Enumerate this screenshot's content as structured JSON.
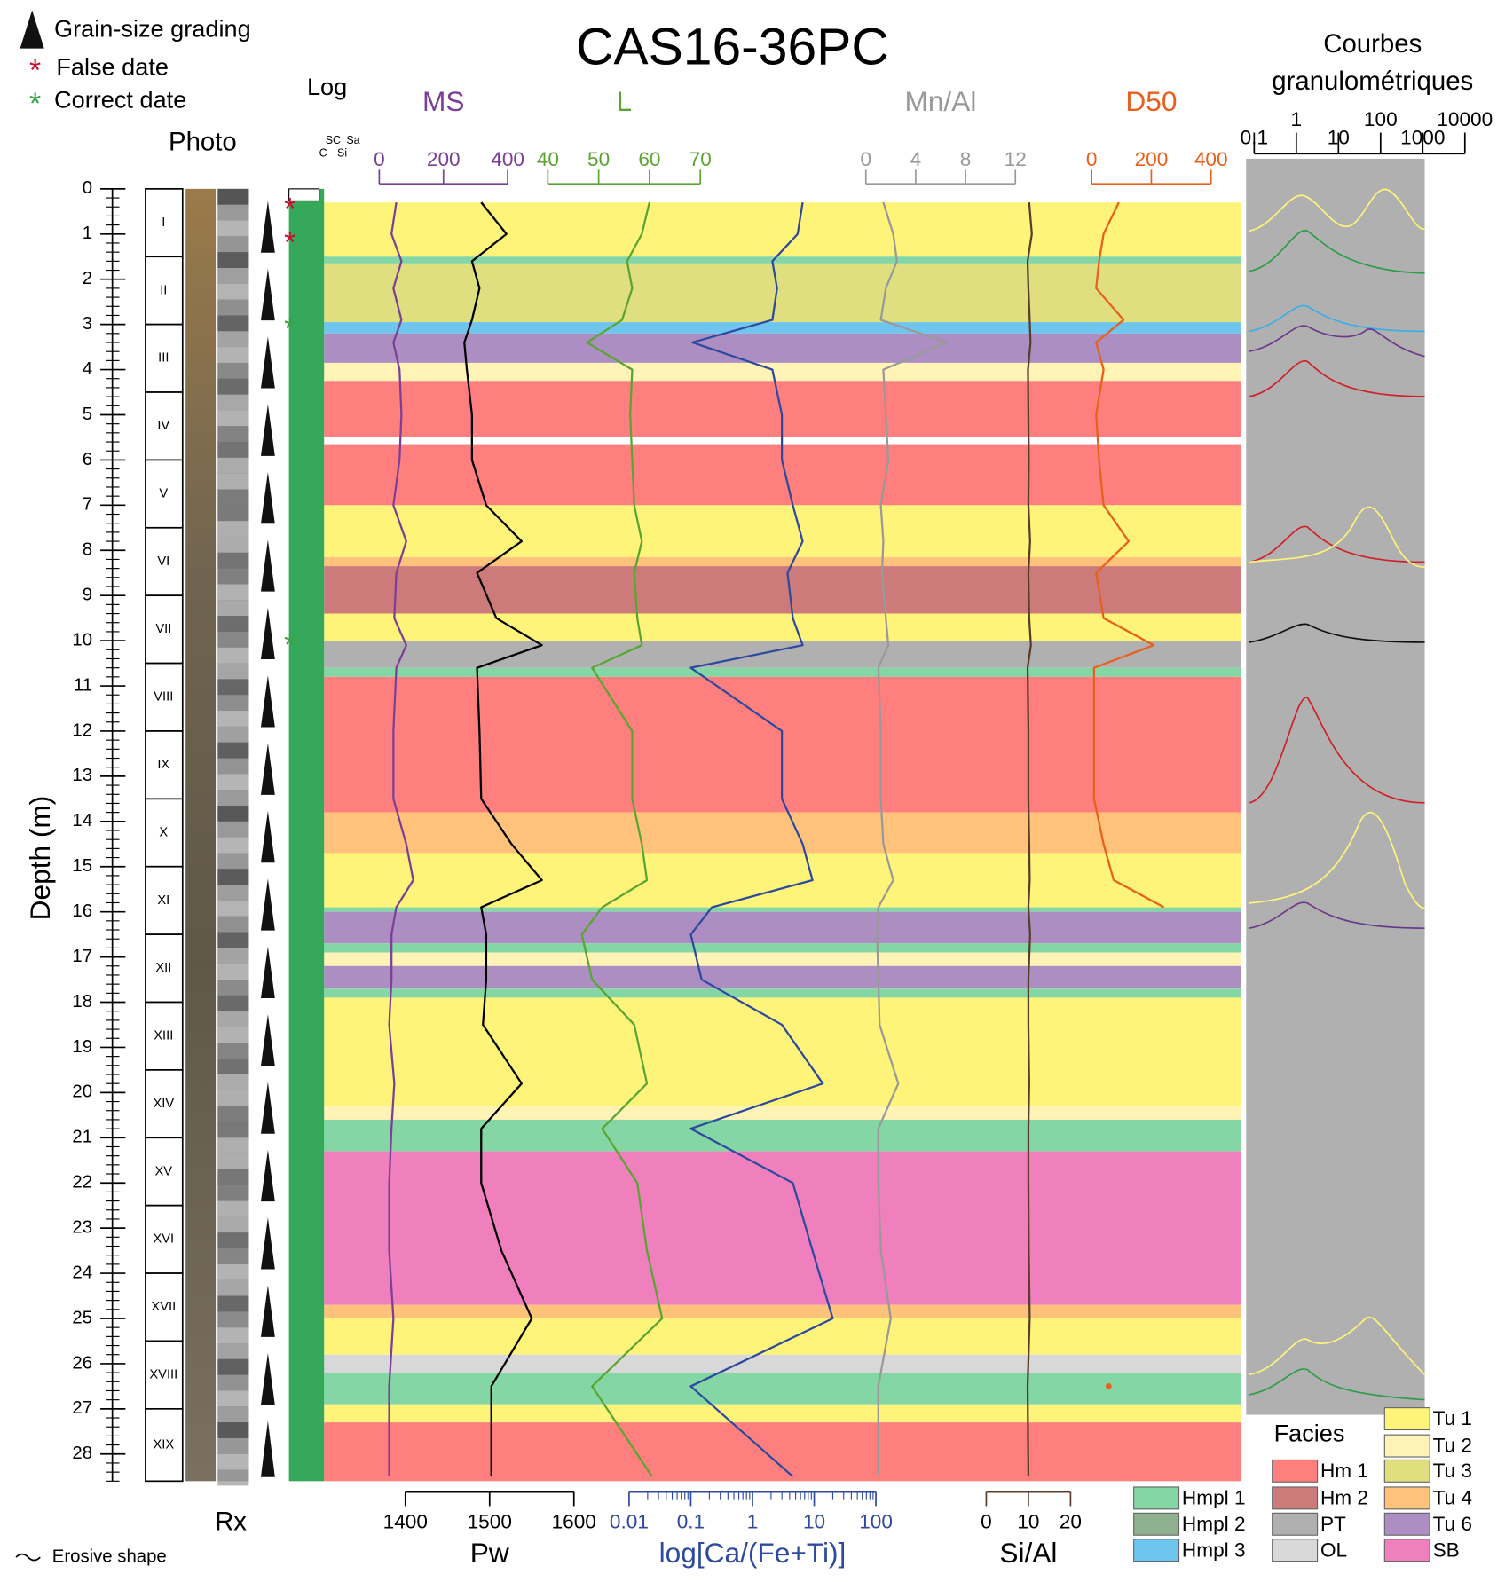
{
  "title": "CAS16-36PC",
  "legend": {
    "grading": "Grain-size grading",
    "false_date": "False date",
    "correct_date": "Correct date",
    "erosive": "Erosive shape"
  },
  "column_labels": {
    "photo": "Photo",
    "rx": "Rx",
    "log": "Log",
    "grain_classes": [
      "C",
      "Si",
      "SC",
      "Sa"
    ]
  },
  "depth_axis": {
    "label": "Depth (m)",
    "lim": [
      0,
      28.6
    ],
    "ticks": [
      0,
      1,
      2,
      3,
      4,
      5,
      6,
      7,
      8,
      9,
      10,
      11,
      12,
      13,
      14,
      15,
      16,
      17,
      18,
      19,
      20,
      21,
      22,
      23,
      24,
      25,
      26,
      27,
      28
    ]
  },
  "units": [
    {
      "name": "I",
      "top": 0,
      "base": 1.5
    },
    {
      "name": "II",
      "top": 1.5,
      "base": 3.0
    },
    {
      "name": "III",
      "top": 3.0,
      "base": 4.5
    },
    {
      "name": "IV",
      "top": 4.5,
      "base": 6.0
    },
    {
      "name": "V",
      "top": 6.0,
      "base": 7.5
    },
    {
      "name": "VI",
      "top": 7.5,
      "base": 9.0
    },
    {
      "name": "VII",
      "top": 9.0,
      "base": 10.5
    },
    {
      "name": "VIII",
      "top": 10.5,
      "base": 12.0
    },
    {
      "name": "IX",
      "top": 12.0,
      "base": 13.5
    },
    {
      "name": "X",
      "top": 13.5,
      "base": 15.0
    },
    {
      "name": "XI",
      "top": 15.0,
      "base": 16.5
    },
    {
      "name": "XII",
      "top": 16.5,
      "base": 18.0
    },
    {
      "name": "XIII",
      "top": 18.0,
      "base": 19.5
    },
    {
      "name": "XIV",
      "top": 19.5,
      "base": 21.0
    },
    {
      "name": "XV",
      "top": 21.0,
      "base": 22.5
    },
    {
      "name": "XVI",
      "top": 22.5,
      "base": 24.0
    },
    {
      "name": "XVII",
      "top": 24.0,
      "base": 25.5
    },
    {
      "name": "XVIII",
      "top": 25.5,
      "base": 27.0
    },
    {
      "name": "XIX",
      "top": 27.0,
      "base": 28.6
    }
  ],
  "false_dates": [
    0.35,
    1.1
  ],
  "correct_dates": [
    3.0,
    10.0
  ],
  "depths": [
    0.3,
    1.0,
    1.6,
    2.2,
    2.9,
    3.4,
    4.0,
    5.0,
    6.0,
    7.0,
    7.8,
    8.5,
    9.5,
    10.1,
    10.6,
    12,
    13.5,
    14.5,
    15.3,
    15.9,
    16.5,
    17.5,
    18.5,
    19.8,
    20.8,
    22,
    23.5,
    25,
    26.5,
    28.5
  ],
  "tracks": [
    {
      "name": "MS",
      "color": "#7b3f98",
      "axis_position": "top",
      "lim": [
        0,
        400
      ],
      "ticks": [
        0,
        200,
        400
      ],
      "values": [
        53,
        38,
        69,
        44,
        69,
        44,
        63,
        69,
        63,
        44,
        84,
        53,
        47,
        84,
        53,
        44,
        44,
        84,
        106,
        53,
        38,
        38,
        31,
        47,
        38,
        31,
        31,
        44,
        31,
        31
      ]
    },
    {
      "name": "L",
      "color": "#5aa532",
      "axis_position": "top",
      "lim": [
        40,
        70
      ],
      "ticks": [
        40,
        50,
        60,
        70
      ],
      "values": [
        60,
        58.5,
        55.6,
        56.6,
        54.6,
        47.7,
        56.6,
        56.2,
        56.6,
        57,
        58.5,
        57,
        57.6,
        58.5,
        48.7,
        56.6,
        56.6,
        58.5,
        59.5,
        50.7,
        46.7,
        48.7,
        57,
        59.5,
        50.7,
        57.6,
        59.5,
        62.5,
        48.7,
        60.5
      ]
    },
    {
      "name": "Mn/Al",
      "color": "#999999",
      "axis_position": "top",
      "lim": [
        0,
        12
      ],
      "ticks": [
        0,
        4,
        8,
        12
      ],
      "values": [
        1.4,
        2.2,
        2.5,
        1.6,
        1.2,
        6.5,
        1.4,
        1.6,
        1.8,
        1.2,
        1.4,
        1.3,
        1.6,
        1.8,
        1.0,
        1.2,
        1.2,
        1.4,
        2.2,
        1.0,
        0.9,
        1.0,
        1.1,
        2.6,
        1.0,
        1.0,
        1.2,
        2.0,
        1.0,
        1.0
      ]
    },
    {
      "name": "D50",
      "color": "#e8601c",
      "axis_position": "top",
      "lim": [
        0,
        400
      ],
      "ticks": [
        0,
        200,
        400
      ],
      "values": [
        91,
        40,
        25,
        15,
        107,
        15,
        40,
        15,
        25,
        40,
        124,
        15,
        40,
        208,
        8,
        8,
        8,
        40,
        74,
        242,
        null,
        null,
        null,
        null,
        null,
        null,
        null,
        null,
        57,
        null
      ]
    },
    {
      "name": "Pw",
      "color": "#000000",
      "axis_position": "bottom",
      "lim": [
        1400,
        1600
      ],
      "ticks": [
        1400,
        1500,
        1600
      ],
      "values": [
        1490,
        1520,
        1479,
        1488,
        1479,
        1470,
        1473,
        1479,
        1479,
        1496,
        1538,
        1485,
        1508,
        1562,
        1485,
        1488,
        1490,
        1526,
        1562,
        1490,
        1496,
        1496,
        1492,
        1538,
        1490,
        1490,
        1514,
        1550,
        1502,
        1502
      ]
    },
    {
      "name": "log[Ca/(Fe+Ti)]",
      "color": "#2e4a9e",
      "axis_position": "bottom",
      "log": true,
      "lim": [
        0.01,
        100
      ],
      "ticks": [
        0.01,
        0.1,
        1,
        10,
        100
      ],
      "values": [
        6.5,
        5.4,
        2.1,
        2.5,
        2.1,
        0.106,
        2.1,
        3.0,
        3.0,
        4.5,
        6.5,
        3.7,
        4.5,
        6.5,
        0.1,
        3.0,
        3.0,
        6.5,
        9.4,
        0.22,
        0.1,
        0.15,
        3.0,
        13.8,
        0.1,
        4.5,
        9.4,
        20,
        0.1,
        4.5
      ]
    },
    {
      "name": "Si/Al",
      "color": "#5a3e2b",
      "axis_position": "bottom",
      "lim": [
        0,
        20
      ],
      "ticks": [
        0,
        10,
        20
      ],
      "values": [
        10.2,
        10.8,
        9.8,
        10,
        10.3,
        10.5,
        9.9,
        10,
        10.1,
        10,
        10.4,
        10,
        10.2,
        10.6,
        9.8,
        10,
        10,
        10.2,
        10.3,
        10,
        10.4,
        10,
        10,
        10.2,
        10,
        10,
        10.1,
        10.3,
        9.8,
        10
      ]
    }
  ],
  "facies_legend": {
    "title": "Facies",
    "items": [
      {
        "name": "Hmpl 1",
        "color": "#84d7a5"
      },
      {
        "name": "Hmpl 2",
        "color": "#8fb08f"
      },
      {
        "name": "Hmpl 3",
        "color": "#6ec6ef"
      },
      {
        "name": "Hm 1",
        "color": "#ff7f7f"
      },
      {
        "name": "Hm 2",
        "color": "#cd7a7a"
      },
      {
        "name": "PT",
        "color": "#b0b0b0"
      },
      {
        "name": "OL",
        "color": "#d8d8d8"
      },
      {
        "name": "Tu 1",
        "color": "#fff47a"
      },
      {
        "name": "Tu 2",
        "color": "#fff3b5"
      },
      {
        "name": "Tu 3",
        "color": "#e0df80"
      },
      {
        "name": "Tu 4",
        "color": "#ffc27a"
      },
      {
        "name": "Tu 6",
        "color": "#ac8ec3"
      },
      {
        "name": "SB",
        "color": "#f07fbd"
      }
    ]
  },
  "facies_intervals": [
    {
      "facies": "Tu 1",
      "top": 0.3,
      "base": 1.5
    },
    {
      "facies": "Hmpl 1",
      "top": 1.5,
      "base": 1.65
    },
    {
      "facies": "Tu 3",
      "top": 1.65,
      "base": 2.95
    },
    {
      "facies": "Hmpl 3",
      "top": 2.95,
      "base": 3.2
    },
    {
      "facies": "Tu 6",
      "top": 3.2,
      "base": 3.85
    },
    {
      "facies": "Tu 2",
      "top": 3.85,
      "base": 4.25
    },
    {
      "facies": "Hm 1",
      "top": 4.25,
      "base": 5.5
    },
    {
      "facies": "Hm 1",
      "top": 5.65,
      "base": 7.0
    },
    {
      "facies": "Tu 1",
      "top": 7.0,
      "base": 8.15
    },
    {
      "facies": "Tu 4",
      "top": 8.15,
      "base": 8.35
    },
    {
      "facies": "Hm 2",
      "top": 8.35,
      "base": 9.4
    },
    {
      "facies": "Tu 1",
      "top": 9.4,
      "base": 10.0
    },
    {
      "facies": "PT",
      "top": 10.0,
      "base": 10.6
    },
    {
      "facies": "Hmpl 1",
      "top": 10.6,
      "base": 10.8
    },
    {
      "facies": "Hm 1",
      "top": 10.8,
      "base": 13.8
    },
    {
      "facies": "Tu 4",
      "top": 13.8,
      "base": 14.7
    },
    {
      "facies": "Tu 1",
      "top": 14.7,
      "base": 15.9
    },
    {
      "facies": "Hmpl 1",
      "top": 15.9,
      "base": 16.0
    },
    {
      "facies": "Tu 6",
      "top": 16.0,
      "base": 16.7
    },
    {
      "facies": "Hmpl 1",
      "top": 16.7,
      "base": 16.9
    },
    {
      "facies": "Tu 2",
      "top": 16.9,
      "base": 17.2
    },
    {
      "facies": "Tu 6",
      "top": 17.2,
      "base": 17.7
    },
    {
      "facies": "Hmpl 1",
      "top": 17.7,
      "base": 17.9
    },
    {
      "facies": "Tu 1",
      "top": 17.9,
      "base": 20.3
    },
    {
      "facies": "Tu 2",
      "top": 20.3,
      "base": 20.6
    },
    {
      "facies": "Hmpl 1",
      "top": 20.6,
      "base": 21.3
    },
    {
      "facies": "SB",
      "top": 21.3,
      "base": 24.7
    },
    {
      "facies": "Tu 4",
      "top": 24.7,
      "base": 25.0
    },
    {
      "facies": "Tu 1",
      "top": 25.0,
      "base": 25.8
    },
    {
      "facies": "OL",
      "top": 25.8,
      "base": 26.2
    },
    {
      "facies": "Hmpl 1",
      "top": 26.2,
      "base": 26.9
    },
    {
      "facies": "Tu 1",
      "top": 26.9,
      "base": 27.3
    },
    {
      "facies": "Hm 1",
      "top": 27.3,
      "base": 28.6
    }
  ],
  "grain_panel": {
    "title": [
      "Courbes",
      "granulométriques"
    ],
    "lim": [
      0.1,
      10000
    ],
    "ticks": [
      0.1,
      1,
      10,
      100,
      1000,
      10000
    ]
  }
}
